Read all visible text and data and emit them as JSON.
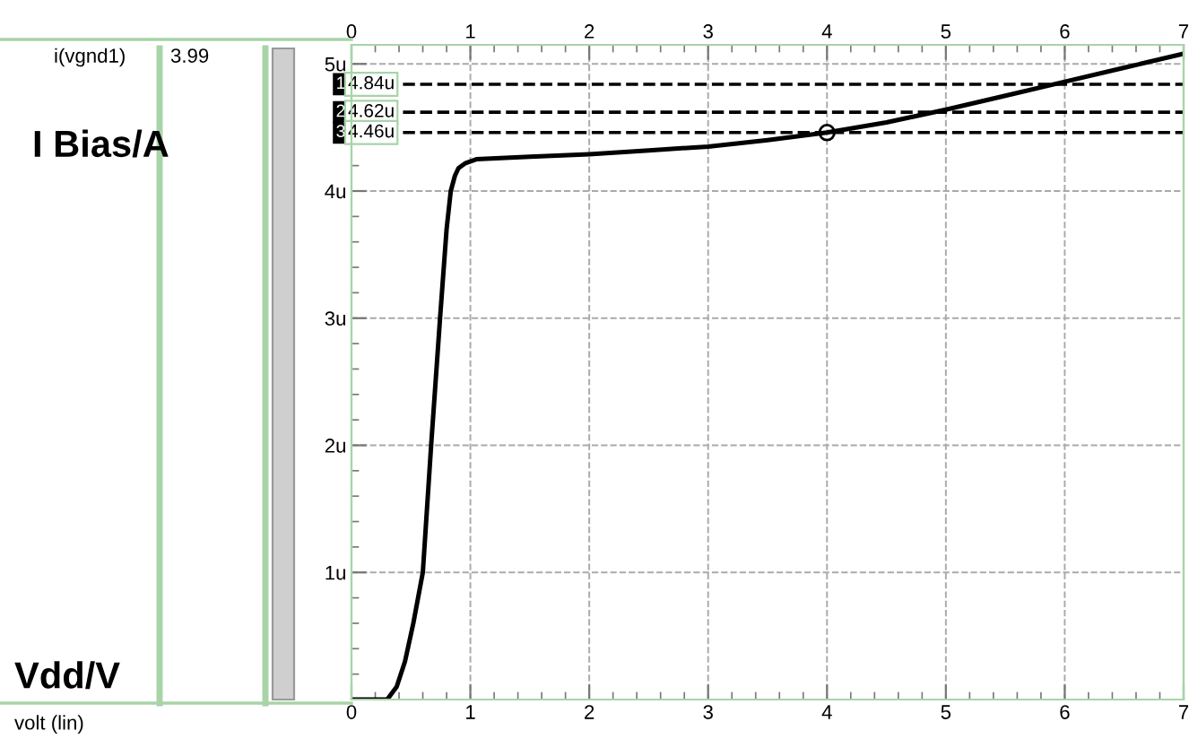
{
  "chart_data": {
    "type": "line",
    "annotations": [
      "i(vgnd1)",
      "3.99",
      "volt (lin)",
      "I Bias/A",
      "Vdd/V"
    ],
    "series": [
      {
        "color": "#000000",
        "x": [
          0,
          0.3,
          0.38,
          0.45,
          0.52,
          0.6,
          0.67,
          0.745,
          0.8,
          0.835,
          0.87,
          0.9,
          0.96,
          1.05,
          1.5,
          2,
          2.5,
          3,
          3.5,
          4,
          4.5,
          5,
          5.5,
          6,
          6.5,
          7
        ],
        "values": [
          0,
          0,
          0.1,
          0.3,
          0.6,
          1,
          2,
          3,
          3.7,
          4,
          4.12,
          4.18,
          4.22,
          4.25,
          4.27,
          4.29,
          4.32,
          4.35,
          4.4,
          4.46,
          4.54,
          4.64,
          4.75,
          4.86,
          4.97,
          5.08
        ]
      }
    ],
    "ref_lines": [
      {
        "axis": "y",
        "value": 4.84,
        "label": "1 4.84u",
        "color": "#000000",
        "line_style": "dashed"
      },
      {
        "axis": "y",
        "value": 4.62,
        "label": "2 4.62u",
        "color": "#000000",
        "line_style": "dashed"
      },
      {
        "axis": "y",
        "value": 4.46,
        "label": "3 4.46u",
        "color": "#000000",
        "line_style": "dashed"
      }
    ],
    "xlim": [
      0,
      7
    ],
    "xticks": [
      0,
      1,
      2,
      3,
      4,
      5,
      6,
      7
    ],
    "x2lim": [
      0,
      7
    ],
    "x2ticks": [
      0,
      1,
      2,
      3,
      4,
      5,
      6,
      7
    ],
    "ylim": [
      0,
      5.15
    ],
    "yticks": [
      {
        "value": 1,
        "label": "1u"
      },
      {
        "value": 2,
        "label": "2u"
      },
      {
        "value": 3,
        "label": "3u"
      },
      {
        "value": 4,
        "label": "4u"
      },
      {
        "value": 5,
        "label": "5u"
      }
    ],
    "grid": true,
    "marker": "none",
    "line_style": "solid"
  }
}
